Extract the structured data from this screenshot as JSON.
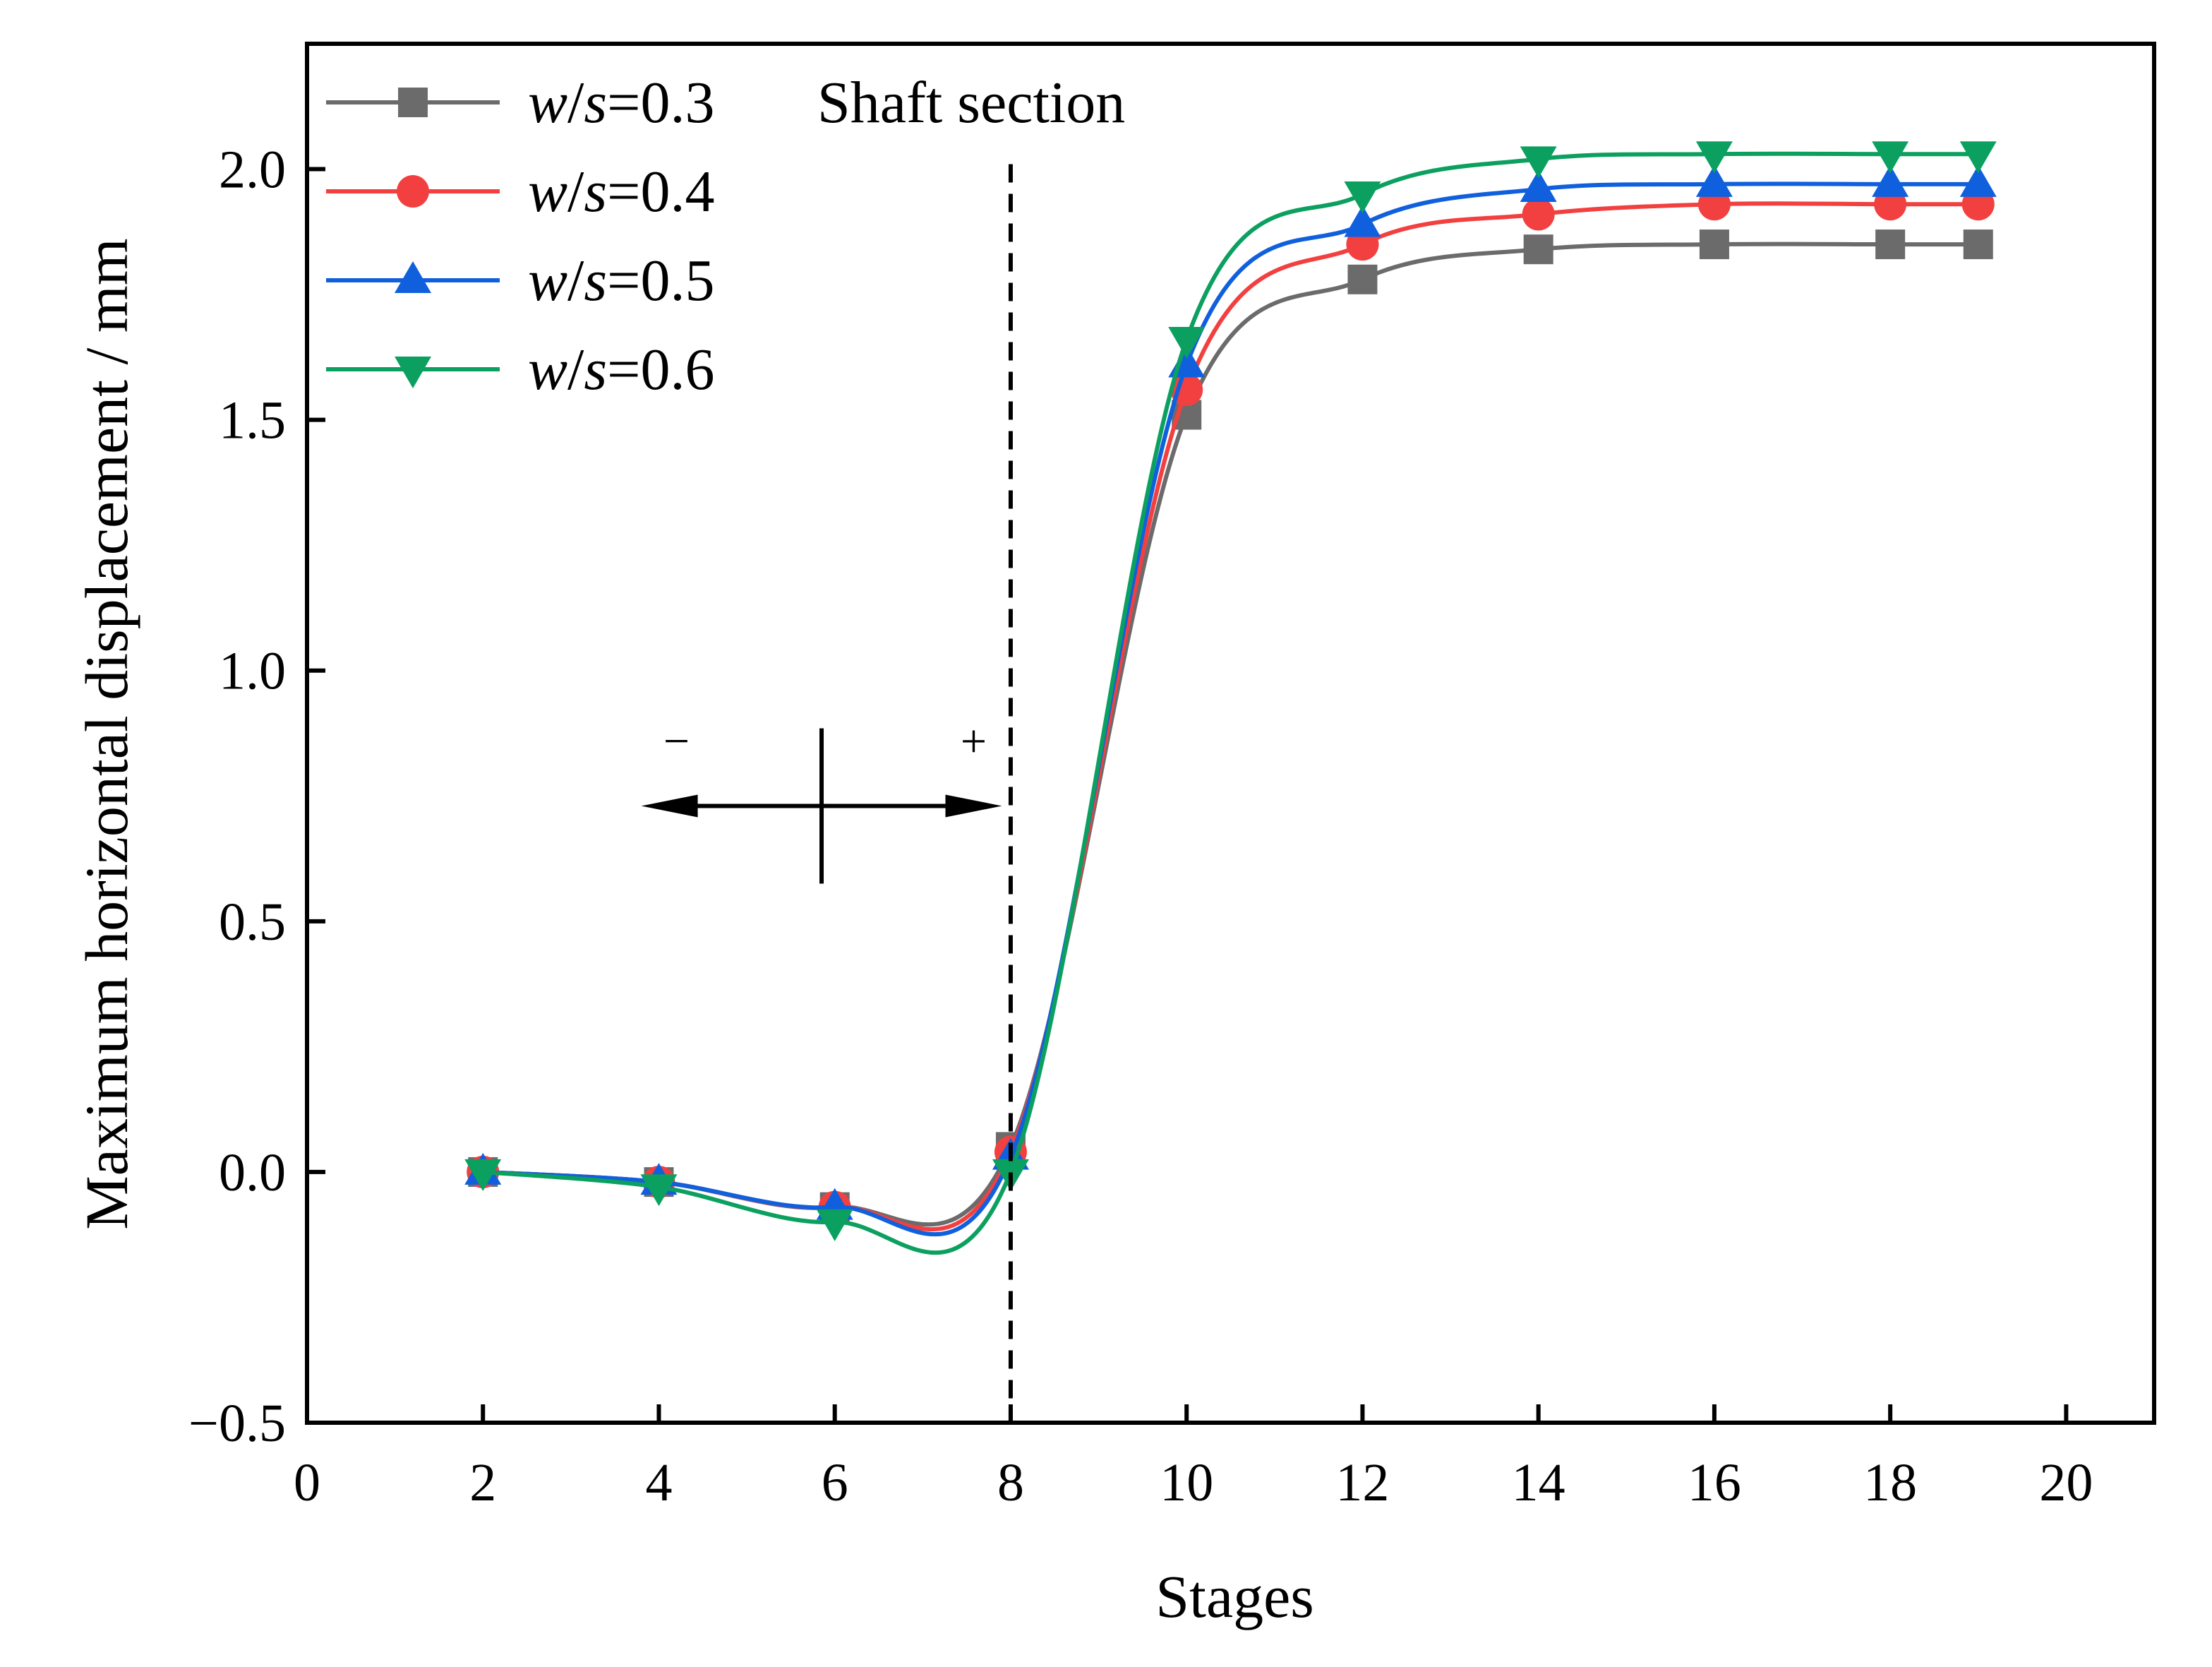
{
  "chart_data": {
    "type": "line",
    "title": "",
    "annotation": "Shaft section",
    "xlabel": "Stages",
    "ylabel": "Maximum horizontal displacement / mm",
    "xlim": [
      0,
      21
    ],
    "ylim": [
      -0.5,
      2.25
    ],
    "xticks": [
      0,
      2,
      4,
      6,
      8,
      10,
      12,
      14,
      16,
      18,
      20
    ],
    "yticks": [
      -0.5,
      0.0,
      0.5,
      1.0,
      1.5,
      2.0
    ],
    "xtick_labels": [
      "0",
      "2",
      "4",
      "6",
      "8",
      "10",
      "12",
      "14",
      "16",
      "18",
      "20"
    ],
    "ytick_labels": [
      "−0.5",
      "0.0",
      "0.5",
      "1.0",
      "1.5",
      "2.0"
    ],
    "legend_position": "top-left",
    "x": [
      2,
      4,
      6,
      8,
      10,
      12,
      14,
      16,
      18,
      19
    ],
    "series": [
      {
        "name_prefix": "w/s",
        "name_value": "=0.3",
        "color": "#6b6b6b",
        "marker": "square",
        "values": [
          0.0,
          -0.02,
          -0.07,
          0.05,
          1.51,
          1.78,
          1.84,
          1.85,
          1.85,
          1.85
        ]
      },
      {
        "name_prefix": "w/s",
        "name_value": "=0.4",
        "color": "#f24040",
        "marker": "circle",
        "values": [
          0.0,
          -0.02,
          -0.07,
          0.04,
          1.56,
          1.85,
          1.91,
          1.93,
          1.93,
          1.93
        ]
      },
      {
        "name_prefix": "w/s",
        "name_value": "=0.5",
        "color": "#1060dd",
        "marker": "triangle-up",
        "values": [
          0.0,
          -0.02,
          -0.07,
          0.03,
          1.61,
          1.89,
          1.96,
          1.97,
          1.97,
          1.97
        ]
      },
      {
        "name_prefix": "w/s",
        "name_value": "=0.6",
        "color": "#0ca060",
        "marker": "triangle-down",
        "values": [
          0.0,
          -0.03,
          -0.1,
          0.0,
          1.66,
          1.95,
          2.02,
          2.03,
          2.03,
          2.03
        ]
      }
    ],
    "divider_x": 8,
    "sign_annotation": {
      "minus": "−",
      "plus": "+",
      "cross_x": 5.85,
      "y": 0.73,
      "arrow_from_x": 3.8,
      "arrow_to_x": 7.9
    }
  }
}
